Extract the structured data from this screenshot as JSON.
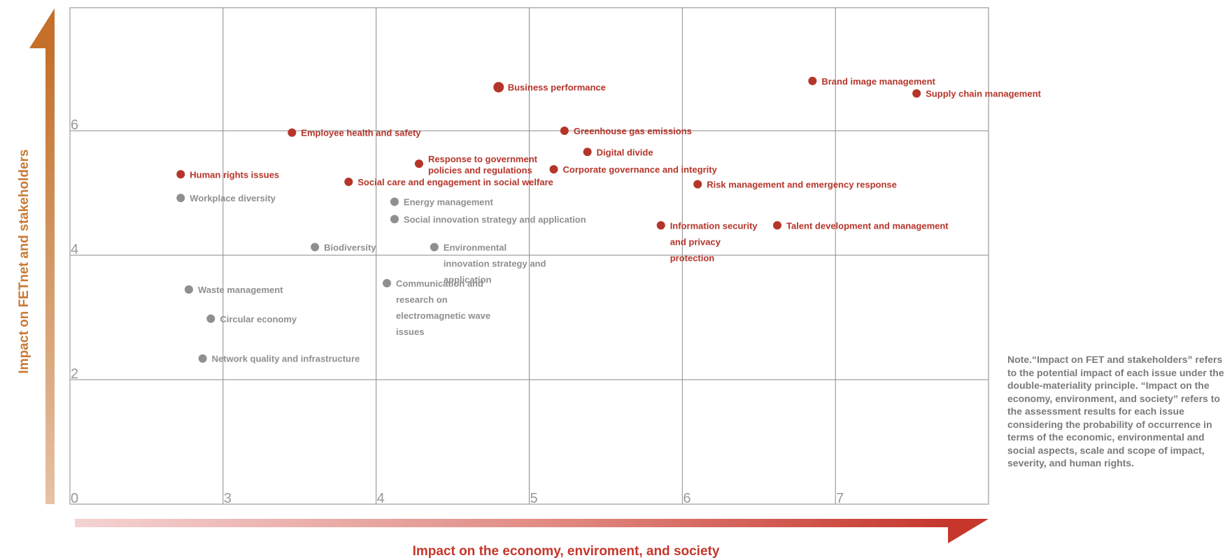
{
  "chart_data": {
    "type": "scatter",
    "title": "",
    "xlabel": "Impact on the economy, enviroment, and society",
    "ylabel": "Impact on FETnet and stakeholders",
    "x_ticks": [
      "0",
      "3",
      "4",
      "5",
      "6",
      "7"
    ],
    "y_ticks": [
      "0",
      "2",
      "4",
      "6"
    ],
    "grid": true,
    "colors": {
      "material": "#b5352a",
      "non_material": "#8f8f8f",
      "axis_x": "#c6362b",
      "axis_y": "#c87a35",
      "grid": "#8a8a8a",
      "tick": "#999999"
    },
    "points": [
      {
        "label": "Business performance",
        "x": 4.8,
        "y": 6.7,
        "category": "material"
      },
      {
        "label": "Brand image management",
        "x": 6.85,
        "y": 6.8,
        "category": "material"
      },
      {
        "label": "Supply chain management",
        "x": 7.53,
        "y": 6.6,
        "category": "material"
      },
      {
        "label": "Employee health and safety",
        "x": 3.45,
        "y": 5.97,
        "category": "material"
      },
      {
        "label": "Greenhouse gas emissions",
        "x": 5.23,
        "y": 6.0,
        "category": "material"
      },
      {
        "label": "Digital divide",
        "x": 5.38,
        "y": 5.66,
        "category": "material"
      },
      {
        "label": "Human rights issues",
        "x": 2.17,
        "y": 5.3,
        "category": "material"
      },
      {
        "label": "Response to government policies and regulations",
        "x": 4.28,
        "y": 5.47,
        "category": "material"
      },
      {
        "label": "Corporate governance and integrity",
        "x": 5.16,
        "y": 5.38,
        "category": "material"
      },
      {
        "label": "Social care and engagement in social welfare",
        "x": 3.82,
        "y": 5.18,
        "category": "material"
      },
      {
        "label": "Risk management and emergency response",
        "x": 6.1,
        "y": 5.14,
        "category": "material"
      },
      {
        "label": "Information security and privacy protection",
        "x": 5.86,
        "y": 4.48,
        "category": "material"
      },
      {
        "label": "Talent development and management",
        "x": 6.62,
        "y": 4.48,
        "category": "material"
      },
      {
        "label": "Workplace diversity",
        "x": 2.17,
        "y": 4.92,
        "category": "non_material"
      },
      {
        "label": "Energy management",
        "x": 4.12,
        "y": 4.86,
        "category": "non_material"
      },
      {
        "label": "Social innovation strategy and application",
        "x": 4.12,
        "y": 4.58,
        "category": "non_material"
      },
      {
        "label": "Biodiversity",
        "x": 3.6,
        "y": 4.13,
        "category": "non_material"
      },
      {
        "label": "Environmental innovation strategy and application",
        "x": 4.38,
        "y": 4.13,
        "category": "non_material"
      },
      {
        "label": "Communication and research on electromagnetic wave issues",
        "x": 4.07,
        "y": 3.55,
        "category": "non_material"
      },
      {
        "label": "Waste management",
        "x": 2.33,
        "y": 3.45,
        "category": "non_material"
      },
      {
        "label": "Circular economy",
        "x": 2.76,
        "y": 2.98,
        "category": "non_material"
      },
      {
        "label": "Network quality and infrastructure",
        "x": 2.6,
        "y": 2.34,
        "category": "non_material"
      }
    ]
  },
  "note": "Note.“Impact on FET and stakeholders” refers to the potential impact of each issue under the double-materiality principle. “Impact on the economy, environment, and society”  refers to the assessment results for each issue considering the probability of occurrence in terms of the economic, environmental and social aspects, scale and scope of impact, severity, and human rights."
}
